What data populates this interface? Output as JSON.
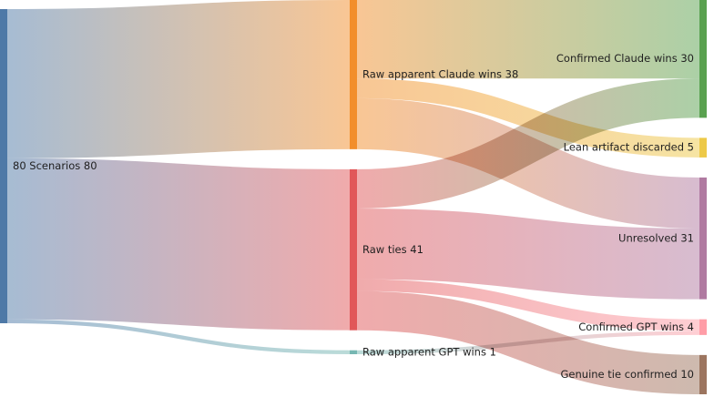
{
  "colors": {
    "scenarios": "#4e79a7",
    "claude_raw": "#f28e2b",
    "ties_raw": "#e15759",
    "gpt_raw": "#76b7b2",
    "claude_confirmed": "#59a14f",
    "lean_artifact": "#edc948",
    "unresolved": "#b07aa1",
    "gpt_confirmed": "#ff9da7",
    "genuine_tie": "#9c755f"
  },
  "nodes": [
    {
      "id": "scenarios",
      "label": "80 Scenarios 80",
      "value": 80,
      "column": 0
    },
    {
      "id": "claude_raw",
      "label": "Raw apparent Claude wins 38",
      "value": 38,
      "column": 1
    },
    {
      "id": "ties_raw",
      "label": "Raw ties 41",
      "value": 41,
      "column": 1
    },
    {
      "id": "gpt_raw",
      "label": "Raw apparent GPT wins 1",
      "value": 1,
      "column": 1
    },
    {
      "id": "claude_confirmed",
      "label": "Confirmed Claude wins 30",
      "value": 30,
      "column": 2
    },
    {
      "id": "lean_artifact",
      "label": "Lean artifact discarded 5",
      "value": 5,
      "column": 2
    },
    {
      "id": "unresolved",
      "label": "Unresolved 31",
      "value": 31,
      "column": 2
    },
    {
      "id": "gpt_confirmed",
      "label": "Confirmed GPT wins 4",
      "value": 4,
      "column": 2
    },
    {
      "id": "genuine_tie",
      "label": "Genuine tie confirmed 10",
      "value": 10,
      "column": 2
    }
  ],
  "links": [
    {
      "source": "scenarios",
      "target": "claude_raw",
      "value": 38
    },
    {
      "source": "scenarios",
      "target": "ties_raw",
      "value": 41
    },
    {
      "source": "scenarios",
      "target": "gpt_raw",
      "value": 1
    },
    {
      "source": "claude_raw",
      "target": "claude_confirmed",
      "value": 20
    },
    {
      "source": "claude_raw",
      "target": "lean_artifact",
      "value": 5
    },
    {
      "source": "claude_raw",
      "target": "unresolved",
      "value": 13
    },
    {
      "source": "ties_raw",
      "target": "claude_confirmed",
      "value": 10
    },
    {
      "source": "ties_raw",
      "target": "unresolved",
      "value": 18
    },
    {
      "source": "ties_raw",
      "target": "gpt_confirmed",
      "value": 3
    },
    {
      "source": "ties_raw",
      "target": "genuine_tie",
      "value": 10
    },
    {
      "source": "gpt_raw",
      "target": "gpt_confirmed",
      "value": 1
    }
  ]
}
